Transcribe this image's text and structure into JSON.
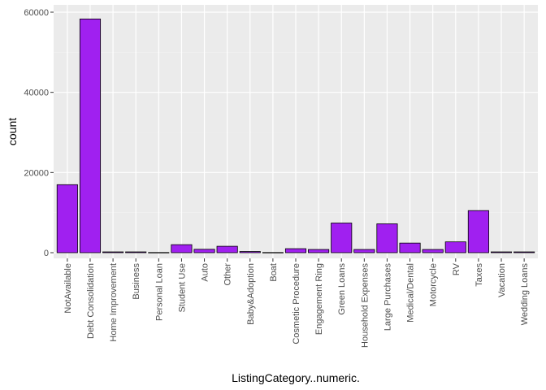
{
  "chart_data": {
    "type": "bar",
    "xlabel": "ListingCategory..numeric.",
    "ylabel": "count",
    "ylim": [
      0,
      61500
    ],
    "y_ticks": [
      0,
      20000,
      40000,
      60000
    ],
    "y_tick_labels": [
      "0",
      "20000",
      "40000",
      "60000"
    ],
    "categories": [
      "NotAvailable",
      "Debt Consolidation",
      "Home Improvement",
      "Business",
      "Personal Loan",
      "Student Use",
      "Auto",
      "Other",
      "Baby&Adoption",
      "Boat",
      "Cosmetic Procedure",
      "Engagement Ring",
      "Green Loans",
      "Household Expenses",
      "Large Purchases",
      "Medical/Dental",
      "Motorcycle",
      "RV",
      "Taxes",
      "Vacation",
      "Wedding Loans"
    ],
    "values": [
      16965,
      58308,
      200,
      200,
      50,
      2000,
      850,
      1600,
      300,
      50,
      1000,
      800,
      7400,
      800,
      7200,
      2400,
      800,
      2700,
      10500,
      200,
      200
    ],
    "grid": true,
    "legend": "none",
    "colors": {
      "bar_fill": "#a020f0",
      "bar_stroke": "#000000",
      "panel_bg": "#ebebeb",
      "grid_major": "#ffffff",
      "grid_minor": "#f2f2f2"
    }
  }
}
